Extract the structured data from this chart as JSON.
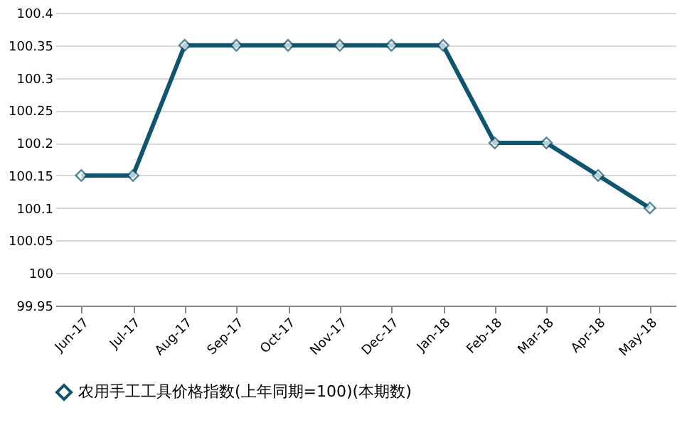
{
  "chart_data": {
    "type": "line",
    "categories": [
      "Jun-17",
      "Jul-17",
      "Aug-17",
      "Sep-17",
      "Oct-17",
      "Nov-17",
      "Dec-17",
      "Jan-18",
      "Feb-18",
      "Mar-18",
      "Apr-18",
      "May-18"
    ],
    "series": [
      {
        "name": "农用手工工具价格指数(上年同期=100)(本期数)",
        "color": "#0f5570",
        "values": [
          100.15,
          100.15,
          100.35,
          100.35,
          100.35,
          100.35,
          100.35,
          100.35,
          100.2,
          100.2,
          100.15,
          100.1
        ]
      }
    ],
    "ylim": [
      99.95,
      100.4
    ],
    "yticks": [
      99.95,
      100,
      100.05,
      100.1,
      100.15,
      100.2,
      100.25,
      100.3,
      100.35,
      100.4
    ],
    "grid": "y",
    "legend": "bottom",
    "marker": "diamond",
    "line_style": "solid"
  }
}
